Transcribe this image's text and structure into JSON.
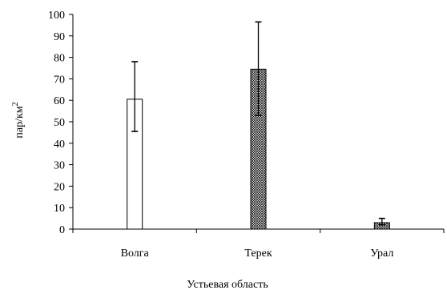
{
  "chart_data": {
    "type": "bar",
    "title": "",
    "xlabel": "Устьевая область",
    "ylabel": "пар/км",
    "ylabel_superscript": "2",
    "ylim": [
      0,
      100
    ],
    "yticks": [
      0,
      10,
      20,
      30,
      40,
      50,
      60,
      70,
      80,
      90,
      100
    ],
    "categories": [
      "Волга",
      "Терек",
      "Урал"
    ],
    "values": [
      60.5,
      74.5,
      3
    ],
    "error_upper": [
      78,
      96.5,
      5
    ],
    "error_lower": [
      45.5,
      53,
      2
    ],
    "bar_fills": [
      "white",
      "crosshatch",
      "crosshatch"
    ],
    "grid": false,
    "legend": "none"
  }
}
